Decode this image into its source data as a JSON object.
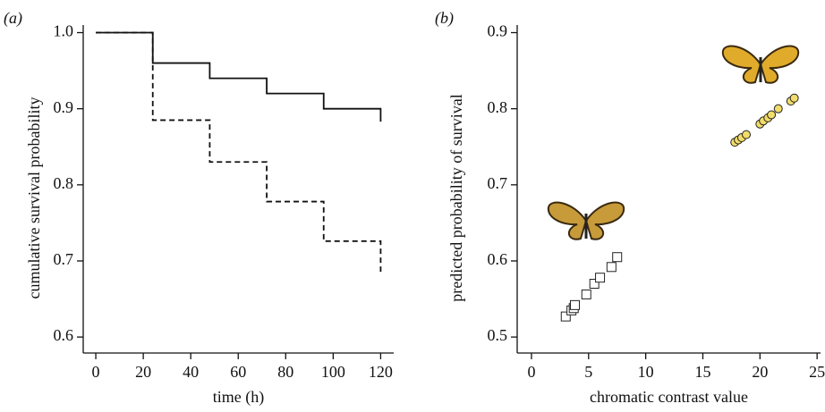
{
  "chart_data": [
    {
      "type": "line",
      "panel_label": "(a)",
      "xlabel": "time (h)",
      "ylabel": "cumulative survival probability",
      "x": [
        0,
        24,
        24,
        48,
        48,
        72,
        72,
        96,
        96,
        120,
        120
      ],
      "series": [
        {
          "color": "#111111",
          "style": "solid",
          "values": [
            1.0,
            1.0,
            0.96,
            0.96,
            0.94,
            0.94,
            0.92,
            0.92,
            0.9,
            0.9,
            0.883
          ]
        },
        {
          "color": "#111111",
          "style": "dashed",
          "values": [
            1.0,
            1.0,
            0.885,
            0.885,
            0.83,
            0.83,
            0.778,
            0.778,
            0.726,
            0.726,
            0.683
          ]
        }
      ],
      "xlim": [
        -5.3,
        125.5
      ],
      "xticks": [
        0,
        20,
        40,
        60,
        80,
        100,
        120
      ],
      "ylim": [
        0.579,
        1.01
      ],
      "yticks": [
        0.6,
        0.7,
        0.8,
        0.9,
        {
          "value": 1,
          "label": "1.0"
        }
      ]
    },
    {
      "type": "scatter",
      "panel_label": "(b)",
      "xlabel": "chromatic contrast value",
      "ylabel": "predicted probability of survival",
      "series": [
        {
          "marker": "square",
          "color": "#ffffff",
          "x": [
            3.0,
            3.5,
            3.7,
            3.8,
            4.8,
            5.5,
            6.0,
            7.0,
            7.5
          ],
          "values": [
            0.527,
            0.535,
            0.538,
            0.542,
            0.556,
            0.57,
            0.578,
            0.592,
            0.605
          ]
        },
        {
          "marker": "circle",
          "color": "#f2dc6a",
          "x": [
            17.8,
            18.1,
            18.4,
            18.8,
            20.0,
            20.3,
            20.7,
            21.0,
            21.6,
            22.7,
            23.0
          ],
          "values": [
            0.756,
            0.759,
            0.762,
            0.766,
            0.78,
            0.784,
            0.788,
            0.792,
            0.8,
            0.81,
            0.814
          ]
        }
      ],
      "xlim": [
        -1.25,
        25.3
      ],
      "xticks": [
        0,
        5,
        10,
        15,
        20,
        25
      ],
      "ylim": [
        0.479,
        0.91
      ],
      "yticks": [
        0.5,
        0.6,
        0.7,
        0.8,
        0.9
      ]
    }
  ]
}
